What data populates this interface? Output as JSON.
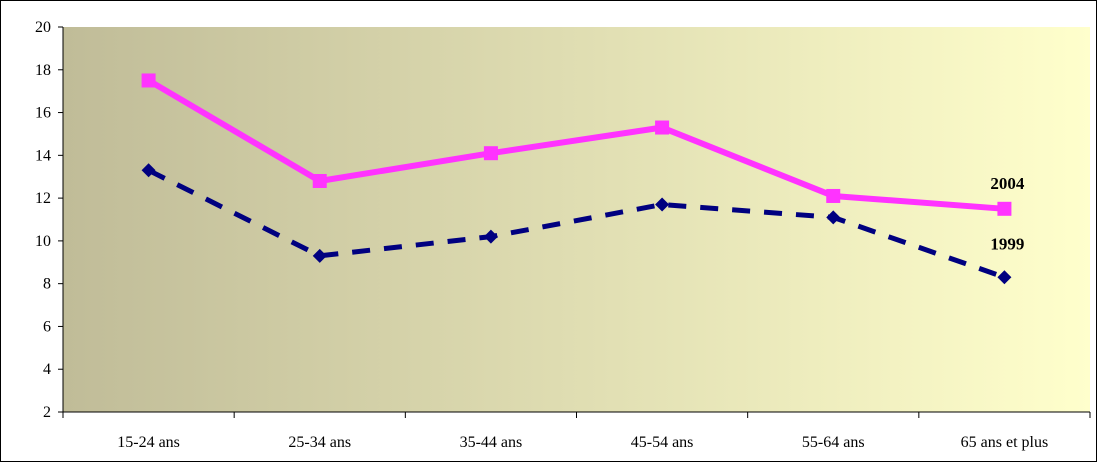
{
  "chart_data": {
    "type": "line",
    "categories": [
      "15-24 ans",
      "25-34 ans",
      "35-44 ans",
      "45-54 ans",
      "55-64 ans",
      "65 ans et plus"
    ],
    "series": [
      {
        "name": "2004",
        "values": [
          17.5,
          12.8,
          14.1,
          15.3,
          12.1,
          11.5
        ],
        "color": "#ff33ff",
        "marker": "square",
        "line": "solid"
      },
      {
        "name": "1999",
        "values": [
          13.3,
          9.3,
          10.2,
          11.7,
          11.1,
          8.3
        ],
        "color": "#000080",
        "marker": "diamond",
        "line": "dashed"
      }
    ],
    "ylim": [
      2,
      20
    ],
    "yticks": [
      "2",
      "4",
      "6",
      "8",
      "10",
      "12",
      "14",
      "16",
      "18",
      "20"
    ],
    "background_gradient": [
      "#c0bc98",
      "#ffffcc"
    ],
    "grid": false,
    "legend": "labels at series end"
  }
}
